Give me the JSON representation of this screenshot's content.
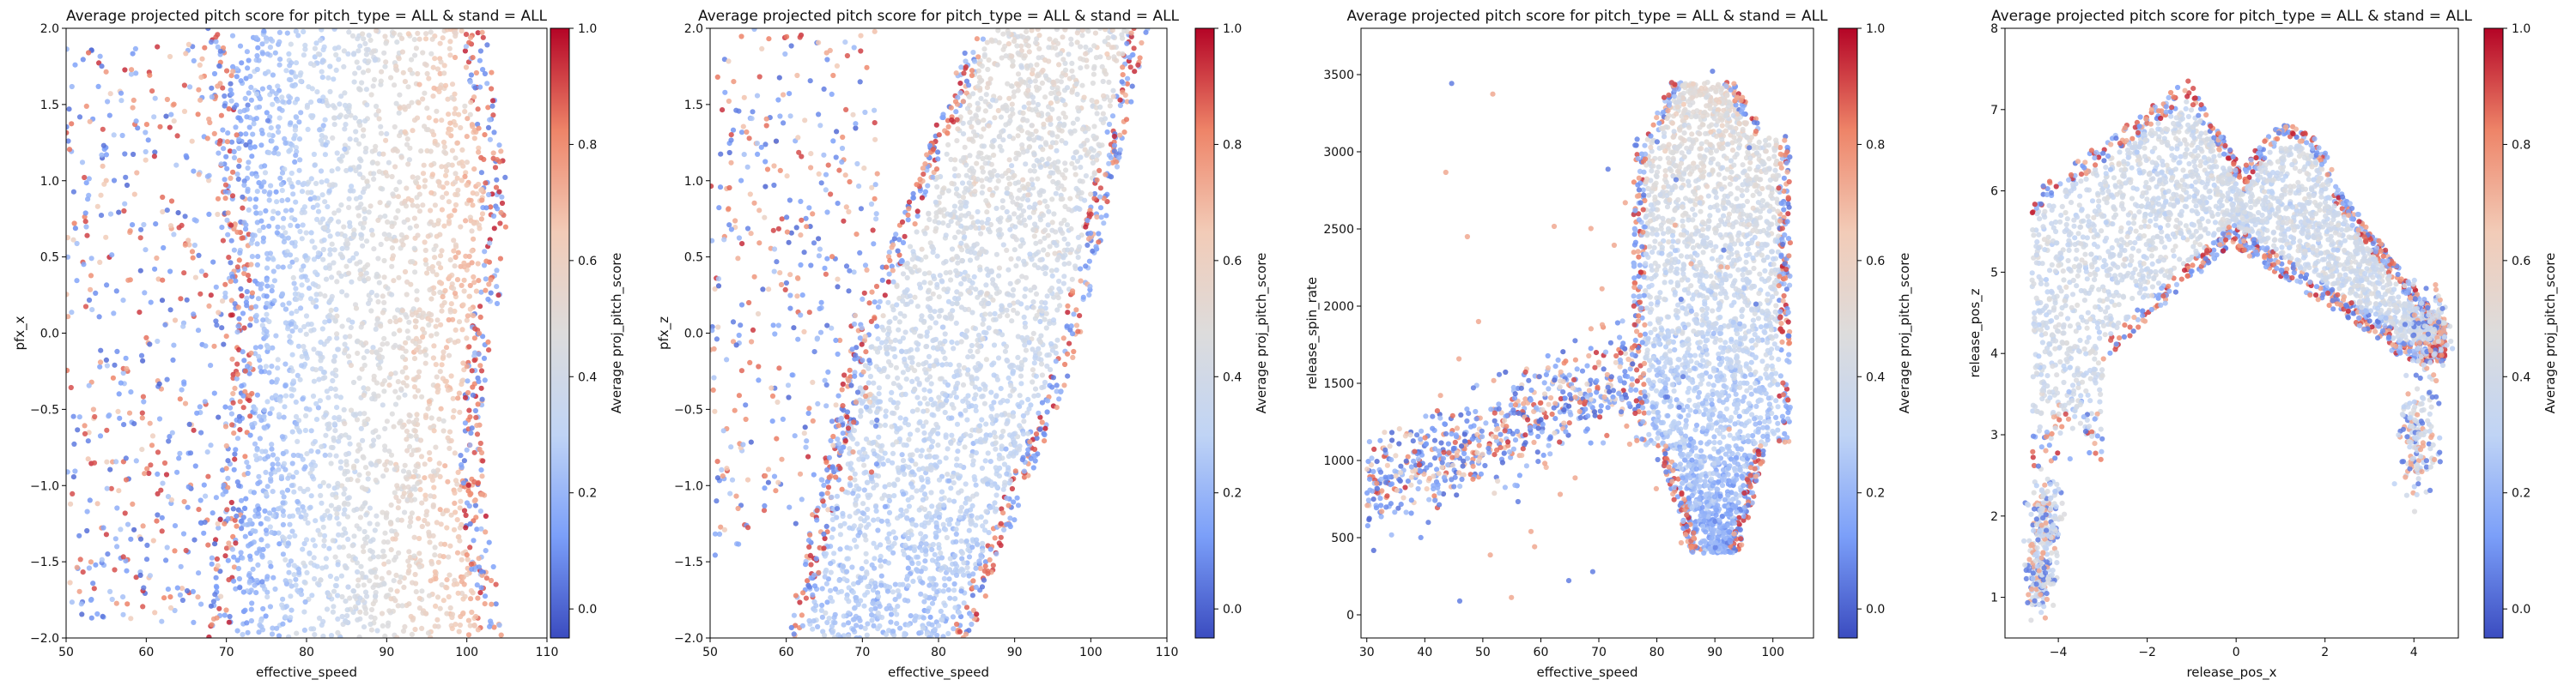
{
  "figure": {
    "colormap": [
      "#3b4cc0",
      "#7b9ff9",
      "#c0d4f5",
      "#dddcdc",
      "#f2cbb7",
      "#ee8468",
      "#b40426"
    ]
  },
  "chart_data": [
    {
      "type": "scatter",
      "title": "Average projected pitch score for pitch_type = ALL & stand = ALL",
      "xlabel": "effective_speed",
      "ylabel": "pfx_x",
      "xlim": [
        50,
        110
      ],
      "ylim": [
        -2.0,
        2.0
      ],
      "xticks": [
        50,
        60,
        70,
        80,
        90,
        100,
        110
      ],
      "xtick_labels": [
        "50",
        "60",
        "70",
        "80",
        "90",
        "100",
        "110"
      ],
      "yticks": [
        -2.0,
        -1.5,
        -1.0,
        -0.5,
        0.0,
        0.5,
        1.0,
        1.5,
        2.0
      ],
      "ytick_labels": [
        "−2.0",
        "−1.5",
        "−1.0",
        "−0.5",
        "0.0",
        "0.5",
        "1.0",
        "1.5",
        "2.0"
      ],
      "colorbar": {
        "label": "Average proj_pitch_score",
        "range": [
          -0.05,
          1.0
        ],
        "ticks": [
          0.0,
          0.2,
          0.4,
          0.6,
          0.8,
          1.0
        ],
        "tick_labels": [
          "0.0",
          "0.2",
          "0.4",
          "0.6",
          "0.8",
          "1.0"
        ]
      },
      "grid": false,
      "note": "dense scatter of points; central mass roughly x 68-105, y -2.0 to 2.0, centre values ~0.35-0.45"
    },
    {
      "type": "scatter",
      "title": "Average projected pitch score for pitch_type = ALL & stand = ALL",
      "xlabel": "effective_speed",
      "ylabel": "pfx_z",
      "xlim": [
        50,
        110
      ],
      "ylim": [
        -2.0,
        2.0
      ],
      "xticks": [
        50,
        60,
        70,
        80,
        90,
        100,
        110
      ],
      "xtick_labels": [
        "50",
        "60",
        "70",
        "80",
        "90",
        "100",
        "110"
      ],
      "yticks": [
        -2.0,
        -1.5,
        -1.0,
        -0.5,
        0.0,
        0.5,
        1.0,
        1.5,
        2.0
      ],
      "ytick_labels": [
        "−2.0",
        "−1.5",
        "−1.0",
        "−0.5",
        "0.0",
        "0.5",
        "1.0",
        "1.5",
        "2.0"
      ],
      "colorbar": {
        "label": "Average proj_pitch_score",
        "range": [
          -0.05,
          1.0
        ],
        "ticks": [
          0.0,
          0.2,
          0.4,
          0.6,
          0.8,
          1.0
        ],
        "tick_labels": [
          "0.0",
          "0.2",
          "0.4",
          "0.6",
          "0.8",
          "1.0"
        ]
      },
      "grid": false,
      "note": "dense scatter tilted upward: low speeds at low pfx_z, high speeds at high pfx_z"
    },
    {
      "type": "scatter",
      "title": "Average projected pitch score for pitch_type = ALL & stand = ALL",
      "xlabel": "effective_speed",
      "ylabel": "release_spin_rate",
      "xlim": [
        29,
        107
      ],
      "ylim": [
        -150,
        3800
      ],
      "xticks": [
        30,
        40,
        50,
        60,
        70,
        80,
        90,
        100
      ],
      "xtick_labels": [
        "30",
        "40",
        "50",
        "60",
        "70",
        "80",
        "90",
        "100"
      ],
      "yticks": [
        0,
        500,
        1000,
        1500,
        2000,
        2500,
        3000,
        3500
      ],
      "ytick_labels": [
        "0",
        "500",
        "1000",
        "1500",
        "2000",
        "2500",
        "3000",
        "3500"
      ],
      "colorbar": {
        "label": "Average proj_pitch_score",
        "range": [
          -0.05,
          1.0
        ],
        "ticks": [
          0.0,
          0.2,
          0.4,
          0.6,
          0.8,
          1.0
        ],
        "tick_labels": [
          "0.0",
          "0.2",
          "0.4",
          "0.6",
          "0.8",
          "1.0"
        ]
      },
      "grid": false,
      "note": "main blob at speed 75-104, spin 500-3400; tail of low-speed points running down-left to (30, 850)"
    },
    {
      "type": "scatter",
      "title": "Average projected pitch score for pitch_type = ALL & stand = ALL",
      "xlabel": "release_pos_x",
      "ylabel": "release_pos_z",
      "xlim": [
        -5.2,
        5.0
      ],
      "ylim": [
        0.5,
        8.0
      ],
      "xticks": [
        -4,
        -2,
        0,
        2,
        4
      ],
      "xtick_labels": [
        "−4",
        "−2",
        "0",
        "2",
        "4"
      ],
      "yticks": [
        1,
        2,
        3,
        4,
        5,
        6,
        7,
        8
      ],
      "ytick_labels": [
        "1",
        "2",
        "3",
        "4",
        "5",
        "6",
        "7",
        "8"
      ],
      "colorbar": {
        "label": "Average proj_pitch_score",
        "range": [
          -0.05,
          1.0
        ],
        "ticks": [
          0.0,
          0.2,
          0.4,
          0.6,
          0.8,
          1.0
        ],
        "tick_labels": [
          "0.0",
          "0.2",
          "0.4",
          "0.6",
          "0.8",
          "1.0"
        ]
      },
      "grid": false,
      "note": "arch of release points: left lobe peaking near (-1, 7.4), right lobe near (1.5, 6.9), arms down to (-4.5, 3.5) and (4.2, 4.3); small clusters near (-4.3, 2.0), (-4.4, 1.2), (4.0, 3.0)"
    }
  ]
}
